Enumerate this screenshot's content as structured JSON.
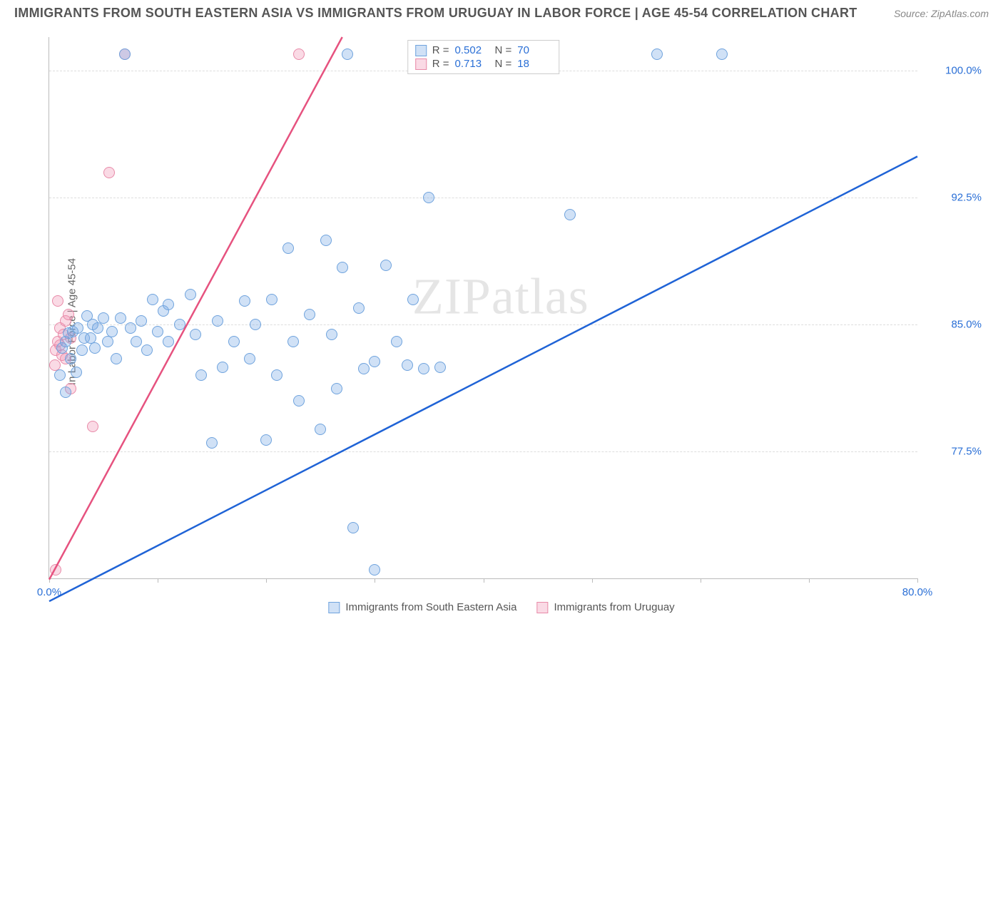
{
  "header": {
    "title": "IMMIGRANTS FROM SOUTH EASTERN ASIA VS IMMIGRANTS FROM URUGUAY IN LABOR FORCE | AGE 45-54 CORRELATION CHART",
    "source": "Source: ZipAtlas.com"
  },
  "ylabel": "In Labor Force | Age 45-54",
  "watermark_a": "ZIP",
  "watermark_b": "atlas",
  "chart": {
    "type": "scatter",
    "xlim": [
      0,
      80
    ],
    "ylim": [
      70,
      102
    ],
    "yticks": [
      {
        "v": 77.5,
        "label": "77.5%"
      },
      {
        "v": 85.0,
        "label": "85.0%"
      },
      {
        "v": 92.5,
        "label": "92.5%"
      },
      {
        "v": 100.0,
        "label": "100.0%"
      }
    ],
    "xtick_positions": [
      0,
      10,
      20,
      30,
      40,
      50,
      60,
      70,
      80
    ],
    "xtick_labels": {
      "0": "0.0%",
      "80": "80.0%"
    },
    "marker_radius": 8,
    "marker_stroke_width": 1.5,
    "trend_line_width": 2.5,
    "grid_color": "#dddddd",
    "axis_color": "#bbbbbb",
    "background": "#ffffff",
    "series": [
      {
        "key": "se_asia",
        "name": "Immigrants from South Eastern Asia",
        "fill": "rgba(120,170,230,0.35)",
        "stroke": "#6fa3dd",
        "trend_color": "#1f63d6",
        "R": "0.502",
        "N": "70",
        "trend": {
          "x1": 0,
          "y1": 81.2,
          "x2": 80,
          "y2": 97.6
        },
        "points": [
          [
            1.0,
            82.0
          ],
          [
            1.2,
            83.6
          ],
          [
            1.5,
            81.0
          ],
          [
            1.5,
            84.0
          ],
          [
            1.8,
            84.5
          ],
          [
            2.0,
            83.0
          ],
          [
            2.2,
            84.6
          ],
          [
            2.5,
            82.2
          ],
          [
            2.6,
            84.8
          ],
          [
            3.0,
            83.5
          ],
          [
            3.2,
            84.2
          ],
          [
            3.5,
            85.5
          ],
          [
            3.8,
            84.2
          ],
          [
            4.0,
            85.0
          ],
          [
            4.2,
            83.6
          ],
          [
            4.5,
            84.8
          ],
          [
            5.0,
            85.4
          ],
          [
            5.4,
            84.0
          ],
          [
            5.8,
            84.6
          ],
          [
            6.2,
            83.0
          ],
          [
            6.6,
            85.4
          ],
          [
            7.0,
            101.0
          ],
          [
            7.5,
            84.8
          ],
          [
            8.0,
            84.0
          ],
          [
            8.5,
            85.2
          ],
          [
            9.0,
            83.5
          ],
          [
            9.5,
            86.5
          ],
          [
            10.0,
            84.6
          ],
          [
            10.5,
            85.8
          ],
          [
            11.0,
            84.0
          ],
          [
            11.0,
            86.2
          ],
          [
            12.0,
            85.0
          ],
          [
            13.0,
            86.8
          ],
          [
            13.5,
            84.4
          ],
          [
            14.0,
            82.0
          ],
          [
            15.0,
            78.0
          ],
          [
            15.5,
            85.2
          ],
          [
            16.0,
            82.5
          ],
          [
            17.0,
            84.0
          ],
          [
            18.0,
            86.4
          ],
          [
            18.5,
            83.0
          ],
          [
            19.0,
            85.0
          ],
          [
            20.0,
            78.2
          ],
          [
            20.5,
            86.5
          ],
          [
            21.0,
            82.0
          ],
          [
            22.0,
            89.5
          ],
          [
            22.5,
            84.0
          ],
          [
            23.0,
            80.5
          ],
          [
            24.0,
            85.6
          ],
          [
            25.0,
            78.8
          ],
          [
            25.5,
            90.0
          ],
          [
            26.0,
            84.4
          ],
          [
            26.5,
            81.2
          ],
          [
            27.0,
            88.4
          ],
          [
            27.5,
            101.0
          ],
          [
            28.0,
            73.0
          ],
          [
            28.5,
            86.0
          ],
          [
            29.0,
            82.4
          ],
          [
            30.0,
            82.8
          ],
          [
            30.0,
            70.5
          ],
          [
            31.0,
            88.5
          ],
          [
            32.0,
            84.0
          ],
          [
            33.0,
            82.6
          ],
          [
            33.5,
            86.5
          ],
          [
            34.5,
            82.4
          ],
          [
            35.0,
            92.5
          ],
          [
            36.0,
            82.5
          ],
          [
            48.0,
            91.5
          ],
          [
            56.0,
            101.0
          ],
          [
            62.0,
            101.0
          ]
        ]
      },
      {
        "key": "uruguay",
        "name": "Immigrants from Uruguay",
        "fill": "rgba(240,150,180,0.35)",
        "stroke": "#e88aa8",
        "trend_color": "#e6527f",
        "R": "0.713",
        "N": "18",
        "trend": {
          "x1": 0,
          "y1": 82.0,
          "x2": 27,
          "y2": 102.0
        },
        "points": [
          [
            0.5,
            82.6
          ],
          [
            0.6,
            83.5
          ],
          [
            0.8,
            84.0
          ],
          [
            1.0,
            83.8
          ],
          [
            1.0,
            84.8
          ],
          [
            1.2,
            83.2
          ],
          [
            1.3,
            84.4
          ],
          [
            1.5,
            85.2
          ],
          [
            1.5,
            83.0
          ],
          [
            1.8,
            85.6
          ],
          [
            2.0,
            84.2
          ],
          [
            0.8,
            86.4
          ],
          [
            2.0,
            81.2
          ],
          [
            4.0,
            79.0
          ],
          [
            0.6,
            70.5
          ],
          [
            5.5,
            94.0
          ],
          [
            7.0,
            101.0
          ],
          [
            23.0,
            101.0
          ]
        ]
      }
    ]
  },
  "legend_top_label_R": "R =",
  "legend_top_label_N": "N ="
}
